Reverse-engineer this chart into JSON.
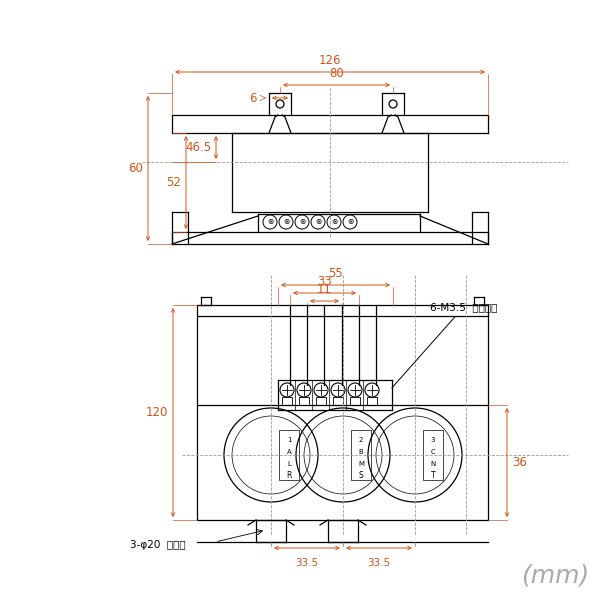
{
  "bg_color": "#ffffff",
  "line_color": "#000000",
  "dim_color": "#d4541a",
  "gray_color": "#999999",
  "text_color": "#000000",
  "mm_text_color": "#aaaaaa",
  "annotations": {
    "dim_126": "126",
    "dim_80": "80",
    "dim_6": "6",
    "dim_60": "60",
    "dim_52": "52",
    "dim_465": "46.5",
    "dim_120": "120",
    "dim_36": "36",
    "dim_55": "55",
    "dim_33": "33",
    "dim_11": "11",
    "dim_335a": "33.5",
    "dim_335b": "33.5",
    "note_terminal": "6-M3.5  端子ねじ",
    "note_hole": "3-φ20  貫通穴",
    "unit": "(mm)"
  }
}
